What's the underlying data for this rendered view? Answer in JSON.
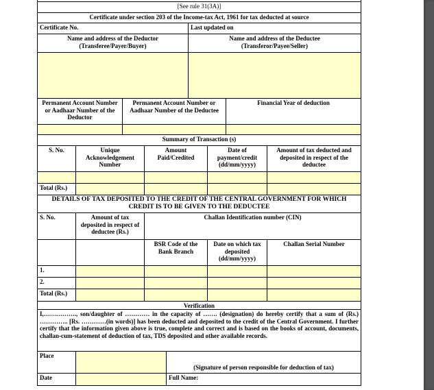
{
  "form": {
    "rule": "[See rule 31(3A)]",
    "title": "Certificate under section 203 of the Income-tax Act, 1961 for tax deducted at source",
    "certificate_no": "Certificate No.",
    "last_updated": "Last updated on",
    "deductor_name_1": "Name and address of the Deductor",
    "deductor_name_2": "(Transferee/Payer/Buyer)",
    "deductee_name_1": "Name and address of the Deductee",
    "deductee_name_2": "(Transferor/Payee/Seller)",
    "pan_deductor": "Permanent Account Number or Aadhaar Number of the Deductor",
    "pan_deductee": "Permanent Account Number or Aadhaar Number of the Deductee",
    "fy": "Financial Year of deduction",
    "summary_title": "Summary of Transaction (s)",
    "summary_headers": [
      "S. No.",
      "Unique Acknowledgement Number",
      "Amount Paid/Credited",
      "Date of payment/credit (dd/mm/yyyy)",
      "Amount of tax deducted and deposited in respect of the deductee"
    ],
    "total": "Total (Rs.)",
    "details_title": "DETAILS OF TAX DEPOSITED TO THE CREDIT OF THE CENTRAL GOVERNMENT FOR WHICH CREDIT IS TO BE GIVEN TO THE DEDUCTEE",
    "details_headers": [
      "S. No.",
      "Amount of tax deposited in respect of deductee (Rs.)",
      "Challan Identification number (CIN)"
    ],
    "cin_headers": [
      "BSR Code of the Bank Branch",
      "Date on which tax deposited (dd/mm/yyyy)",
      "Challan Serial Number"
    ],
    "rows": [
      "1.",
      "2."
    ],
    "verification": "Verification",
    "verification_text": "I,……………., son/daughter of ………… in the capacity of ……. (designation) do hereby certify that a sum of (Rs.) ………….. [Rs. …………(in words)] has been deducted and deposited to the credit of the Central Government. I further certify that the information given above is true, complete and correct and is based on the books of account, documents, challan-cum-statement of deduction of tax, TDS deposited and other available records.",
    "place": "Place",
    "signature": "(Signature of person responsible for deduction of tax)",
    "date": "Date",
    "full_name": "Full Name:"
  },
  "colors": {
    "field": "#ffffcc",
    "scrollbar": "#53575a"
  }
}
